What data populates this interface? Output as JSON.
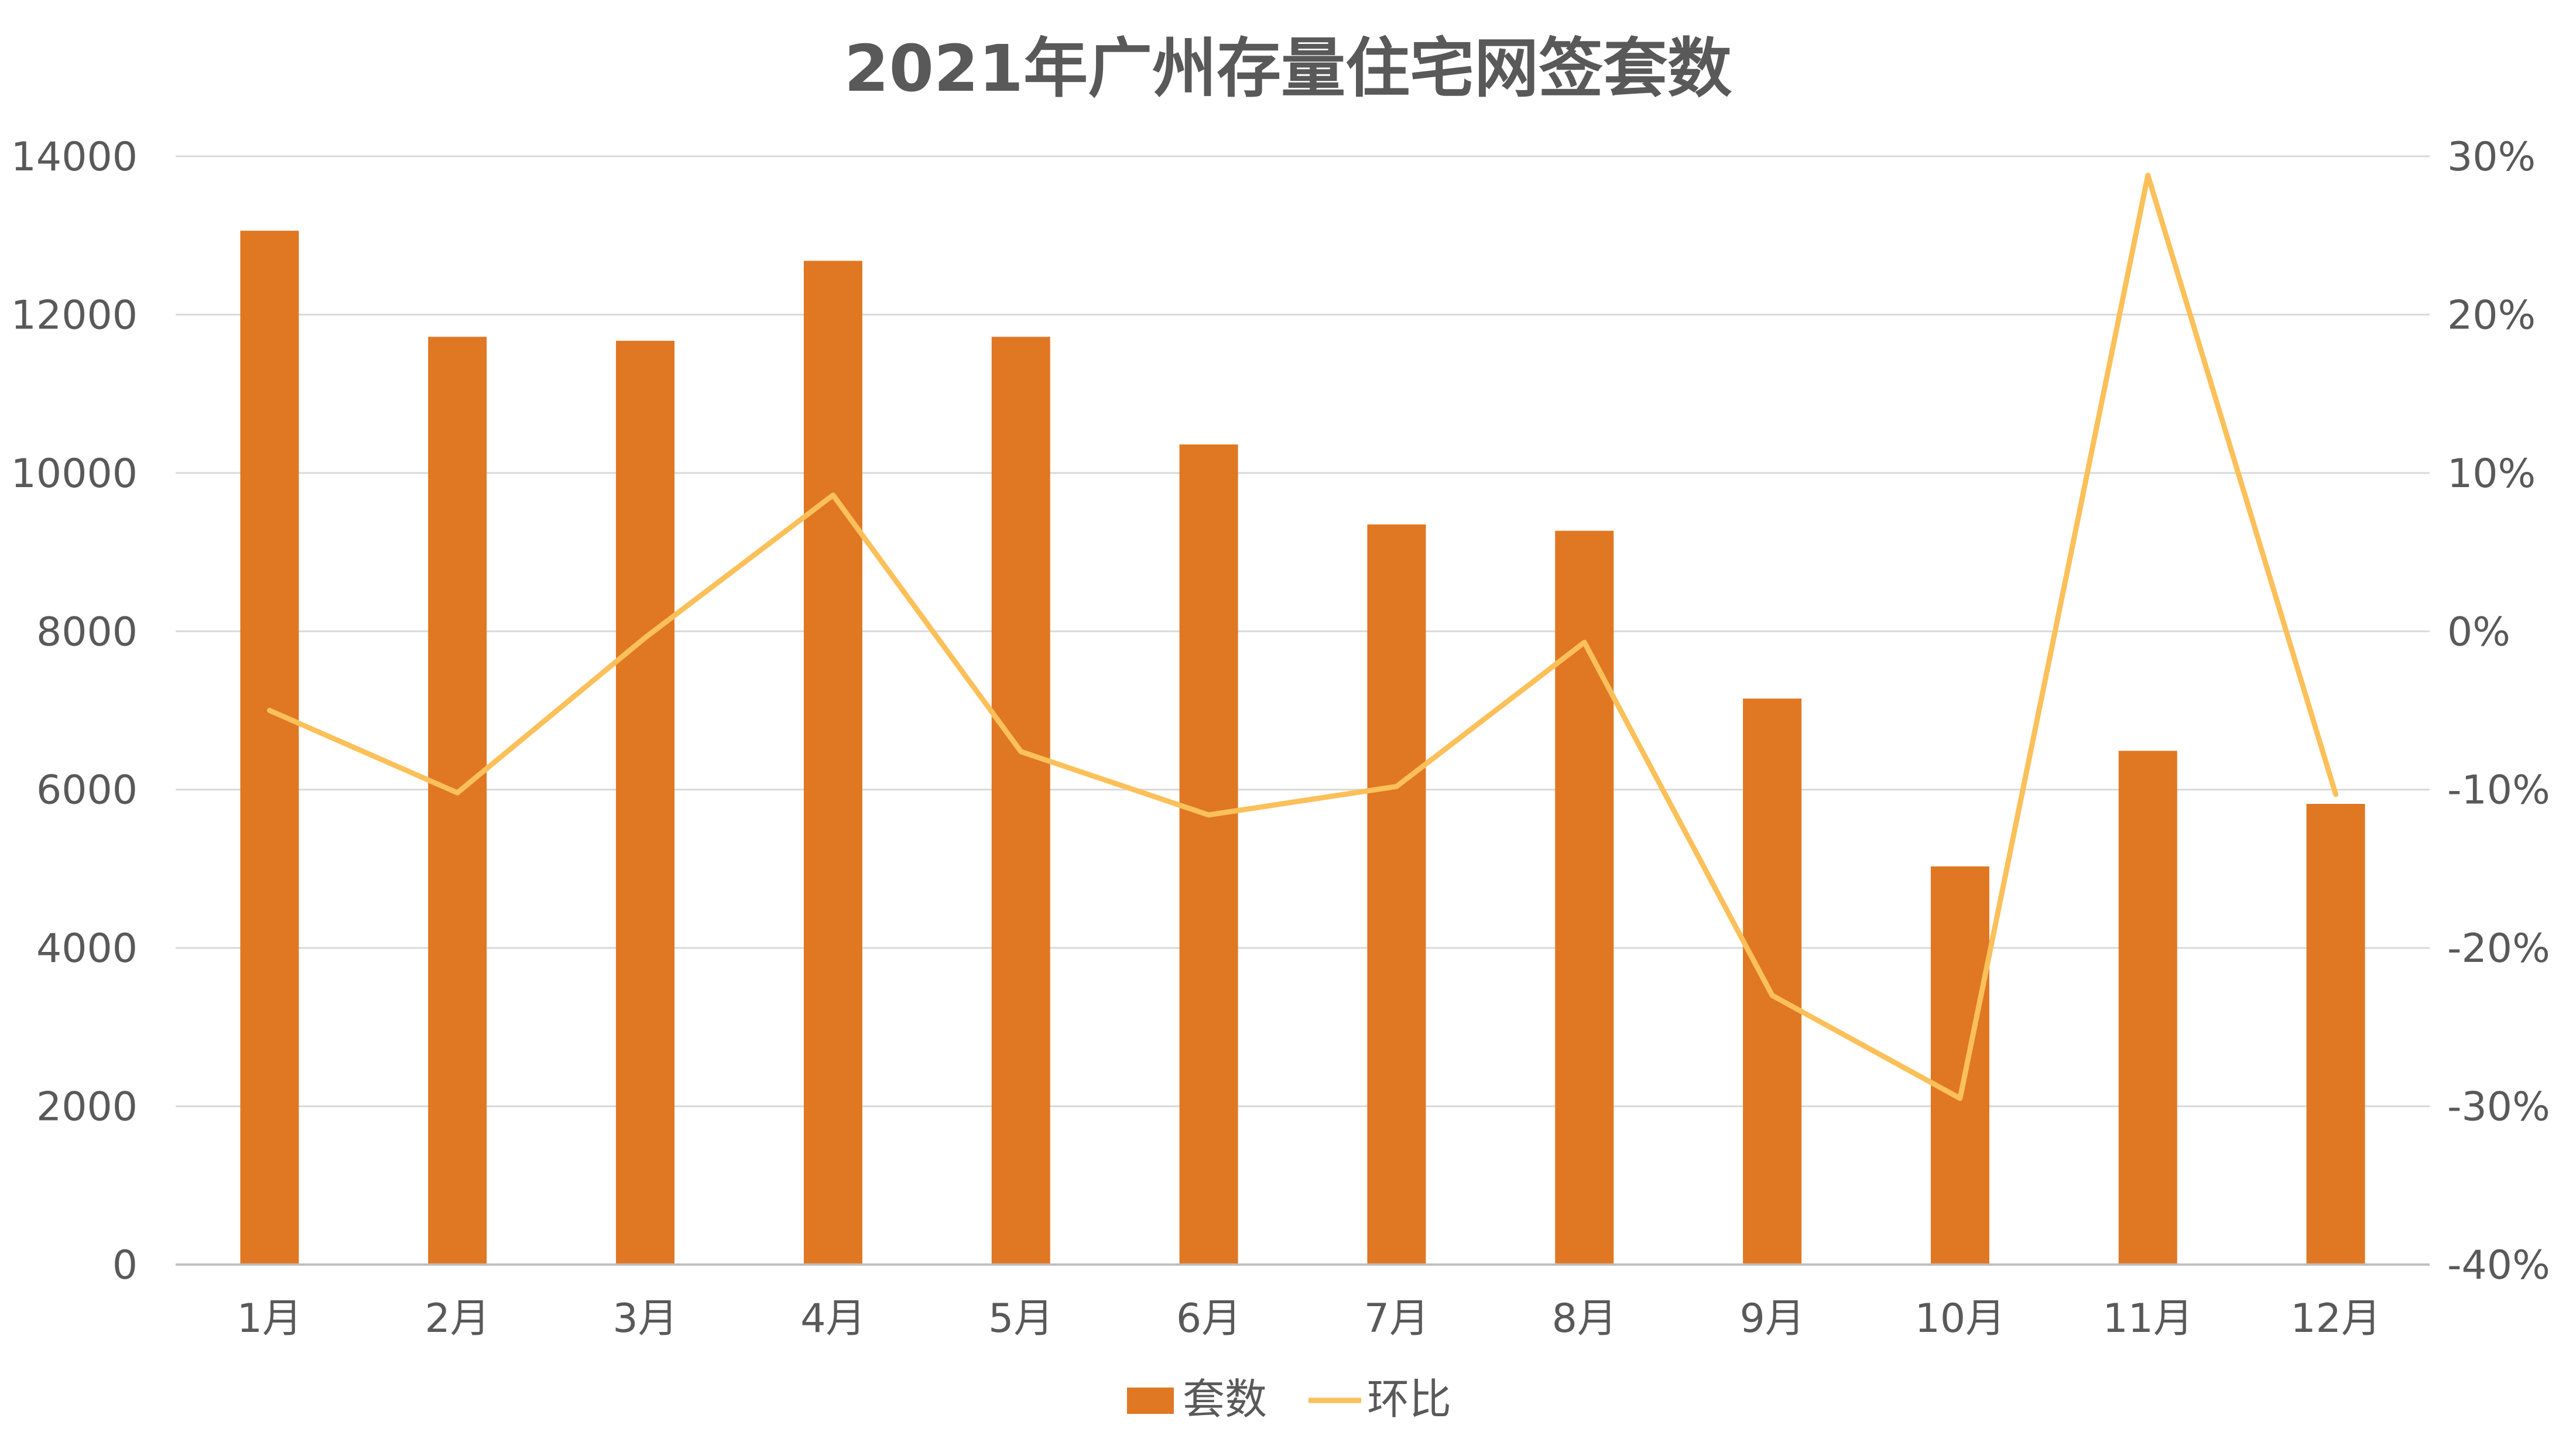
{
  "chart_data": {
    "type": "bar",
    "title": "2021年广州存量住宅网签套数",
    "categories": [
      "1月",
      "2月",
      "3月",
      "4月",
      "5月",
      "6月",
      "7月",
      "8月",
      "9月",
      "10月",
      "11月",
      "12月"
    ],
    "series": [
      {
        "name": "套数",
        "type": "bar",
        "axis": "left",
        "color": "#E07722",
        "values": [
          13060,
          11720,
          11670,
          12680,
          11720,
          10360,
          9350,
          9270,
          7150,
          5030,
          6490,
          5820
        ]
      },
      {
        "name": "环比",
        "type": "line",
        "axis": "right",
        "color": "#FBC05A",
        "values": [
          -5.0,
          -10.2,
          -0.4,
          8.6,
          -7.6,
          -11.6,
          -9.8,
          -0.7,
          -23.0,
          -29.5,
          28.8,
          -10.3
        ]
      }
    ],
    "y_left": {
      "min": 0,
      "max": 14000,
      "ticks": [
        "0",
        "2000",
        "4000",
        "6000",
        "8000",
        "10000",
        "12000",
        "14000"
      ]
    },
    "y_right": {
      "min": -40,
      "max": 30,
      "ticks": [
        "-40%",
        "-30%",
        "-20%",
        "-10%",
        "0%",
        "10%",
        "20%",
        "30%"
      ]
    },
    "grid": true,
    "legend_position": "bottom-center"
  }
}
